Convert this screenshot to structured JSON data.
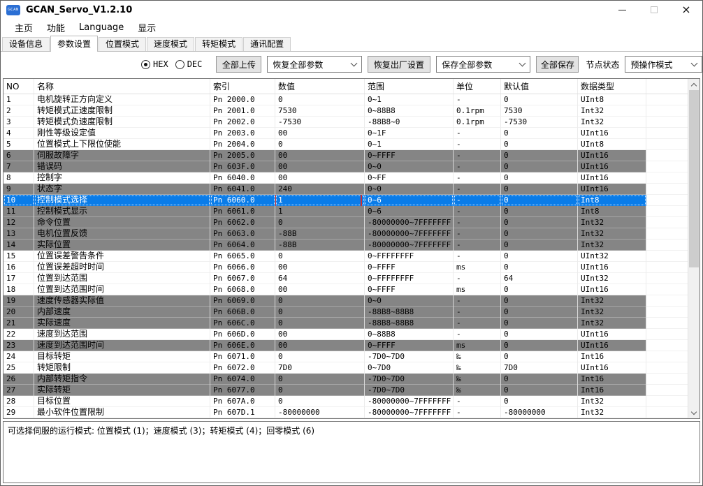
{
  "window": {
    "title": "GCAN_Servo_V1.2.10",
    "icon_text": "GCAN",
    "close_glyph": "×"
  },
  "menu": {
    "items": [
      "主页",
      "功能",
      "Language",
      "显示"
    ]
  },
  "tabs": {
    "items": [
      {
        "label": "设备信息",
        "active": false
      },
      {
        "label": "参数设置",
        "active": true
      },
      {
        "label": "位置模式",
        "active": false
      },
      {
        "label": "速度模式",
        "active": false
      },
      {
        "label": "转矩模式",
        "active": false
      },
      {
        "label": "通讯配置",
        "active": false
      }
    ]
  },
  "toolbar": {
    "radio_hex": {
      "label": "HEX",
      "checked": true
    },
    "radio_dec": {
      "label": "DEC",
      "checked": false
    },
    "upload_all": "全部上传",
    "restore_all_params": "恢复全部参数",
    "factory_reset": "恢复出厂设置",
    "save_all_params": "保存全部参数",
    "save_all": "全部保存",
    "node_status_label": "节点状态",
    "node_status_value": "预操作模式"
  },
  "table": {
    "headers": [
      "NO",
      "名称",
      "索引",
      "数值",
      "范围",
      "单位",
      "默认值",
      "数据类型"
    ],
    "rows": [
      {
        "no": "1",
        "name": "电机旋转正方向定义",
        "index": "Pn 2000.0",
        "value": "0",
        "range": "0~1",
        "unit": "-",
        "def": "0",
        "type": "UInt8",
        "style": "w"
      },
      {
        "no": "2",
        "name": "转矩模式正速度限制",
        "index": "Pn 2001.0",
        "value": "7530",
        "range": "0~88B8",
        "unit": "0.1rpm",
        "def": "7530",
        "type": "Int32",
        "style": "w"
      },
      {
        "no": "3",
        "name": "转矩模式负速度限制",
        "index": "Pn 2002.0",
        "value": "-7530",
        "range": "-88B8~0",
        "unit": "0.1rpm",
        "def": "-7530",
        "type": "Int32",
        "style": "w"
      },
      {
        "no": "4",
        "name": "刚性等级设定值",
        "index": "Pn 2003.0",
        "value": "00",
        "range": "0~1F",
        "unit": "-",
        "def": "0",
        "type": "UInt16",
        "style": "w"
      },
      {
        "no": "5",
        "name": "位置模式上下限位使能",
        "index": "Pn 2004.0",
        "value": "0",
        "range": "0~1",
        "unit": "-",
        "def": "0",
        "type": "UInt8",
        "style": "w"
      },
      {
        "no": "6",
        "name": "伺服故障字",
        "index": "Pn 2005.0",
        "value": "00",
        "range": "0~FFFF",
        "unit": "-",
        "def": "0",
        "type": "UInt16",
        "style": "g"
      },
      {
        "no": "7",
        "name": "错误码",
        "index": "Pn 603F.0",
        "value": "00",
        "range": "0~0",
        "unit": "-",
        "def": "0",
        "type": "UInt16",
        "style": "g"
      },
      {
        "no": "8",
        "name": "控制字",
        "index": "Pn 6040.0",
        "value": "00",
        "range": "0~FF",
        "unit": "-",
        "def": "0",
        "type": "UInt16",
        "style": "w"
      },
      {
        "no": "9",
        "name": "状态字",
        "index": "Pn 6041.0",
        "value": "240",
        "range": "0~0",
        "unit": "-",
        "def": "0",
        "type": "UInt16",
        "style": "g"
      },
      {
        "no": "10",
        "name": "控制模式选择",
        "index": "Pn 6060.0",
        "value": "1",
        "range": "0~6",
        "unit": "-",
        "def": "0",
        "type": "Int8",
        "style": "sel",
        "boxed": true
      },
      {
        "no": "11",
        "name": "控制模式显示",
        "index": "Pn 6061.0",
        "value": "1",
        "range": "0~6",
        "unit": "-",
        "def": "0",
        "type": "Int8",
        "style": "g"
      },
      {
        "no": "12",
        "name": "命令位置",
        "index": "Pn 6062.0",
        "value": "0",
        "range": "-80000000~7FFFFFFF",
        "unit": "-",
        "def": "0",
        "type": "Int32",
        "style": "g"
      },
      {
        "no": "13",
        "name": "电机位置反馈",
        "index": "Pn 6063.0",
        "value": "-88B",
        "range": "-80000000~7FFFFFFF",
        "unit": "-",
        "def": "0",
        "type": "Int32",
        "style": "g"
      },
      {
        "no": "14",
        "name": "实际位置",
        "index": "Pn 6064.0",
        "value": "-88B",
        "range": "-80000000~7FFFFFFF",
        "unit": "-",
        "def": "0",
        "type": "Int32",
        "style": "g"
      },
      {
        "no": "15",
        "name": "位置误差警告条件",
        "index": "Pn 6065.0",
        "value": "0",
        "range": "0~FFFFFFFF",
        "unit": "-",
        "def": "0",
        "type": "UInt32",
        "style": "w"
      },
      {
        "no": "16",
        "name": "位置误差超时时间",
        "index": "Pn 6066.0",
        "value": "00",
        "range": "0~FFFF",
        "unit": "ms",
        "def": "0",
        "type": "UInt16",
        "style": "w"
      },
      {
        "no": "17",
        "name": "位置到达范围",
        "index": "Pn 6067.0",
        "value": "64",
        "range": "0~FFFFFFFF",
        "unit": "-",
        "def": "64",
        "type": "UInt32",
        "style": "w"
      },
      {
        "no": "18",
        "name": "位置到达范围时间",
        "index": "Pn 6068.0",
        "value": "00",
        "range": "0~FFFF",
        "unit": "ms",
        "def": "0",
        "type": "UInt16",
        "style": "w"
      },
      {
        "no": "19",
        "name": "速度传感器实际值",
        "index": "Pn 6069.0",
        "value": "0",
        "range": "0~0",
        "unit": "-",
        "def": "0",
        "type": "Int32",
        "style": "g"
      },
      {
        "no": "20",
        "name": "内部速度",
        "index": "Pn 606B.0",
        "value": "0",
        "range": "-88B8~88B8",
        "unit": "-",
        "def": "0",
        "type": "Int32",
        "style": "g"
      },
      {
        "no": "21",
        "name": "实际速度",
        "index": "Pn 606C.0",
        "value": "0",
        "range": "-88B8~88B8",
        "unit": "-",
        "def": "0",
        "type": "Int32",
        "style": "g"
      },
      {
        "no": "22",
        "name": "速度到达范围",
        "index": "Pn 606D.0",
        "value": "00",
        "range": "0~88B8",
        "unit": "-",
        "def": "0",
        "type": "UInt16",
        "style": "w"
      },
      {
        "no": "23",
        "name": "速度到达范围时间",
        "index": "Pn 606E.0",
        "value": "00",
        "range": "0~FFFF",
        "unit": "ms",
        "def": "0",
        "type": "UInt16",
        "style": "g"
      },
      {
        "no": "24",
        "name": "目标转矩",
        "index": "Pn 6071.0",
        "value": "0",
        "range": "-7D0~7D0",
        "unit": "‰",
        "def": "0",
        "type": "Int16",
        "style": "w"
      },
      {
        "no": "25",
        "name": "转矩限制",
        "index": "Pn 6072.0",
        "value": "7D0",
        "range": "0~7D0",
        "unit": "‰",
        "def": "7D0",
        "type": "UInt16",
        "style": "w"
      },
      {
        "no": "26",
        "name": "内部转矩指令",
        "index": "Pn 6074.0",
        "value": "0",
        "range": "-7D0~7D0",
        "unit": "‰",
        "def": "0",
        "type": "Int16",
        "style": "g"
      },
      {
        "no": "27",
        "name": "实际转矩",
        "index": "Pn 6077.0",
        "value": "0",
        "range": "-7D0~7D0",
        "unit": "‰",
        "def": "0",
        "type": "Int16",
        "style": "g"
      },
      {
        "no": "28",
        "name": "目标位置",
        "index": "Pn 607A.0",
        "value": "0",
        "range": "-80000000~7FFFFFFF",
        "unit": "-",
        "def": "0",
        "type": "Int32",
        "style": "w"
      },
      {
        "no": "29",
        "name": "最小软件位置限制",
        "index": "Pn 607D.1",
        "value": "-80000000",
        "range": "-80000000~7FFFFFFF",
        "unit": "-",
        "def": "-80000000",
        "type": "Int32",
        "style": "w"
      }
    ]
  },
  "bottom": {
    "hint": "可选择伺服的运行模式: 位置模式 (1)；速度模式 (3)；转矩模式 (4)；回零模式 (6)"
  },
  "colors": {
    "selected_row": "#0a7ce8",
    "gray_row": "#858585",
    "red_box": "#d22e2e",
    "icon_blue": "#2b6fd4"
  }
}
